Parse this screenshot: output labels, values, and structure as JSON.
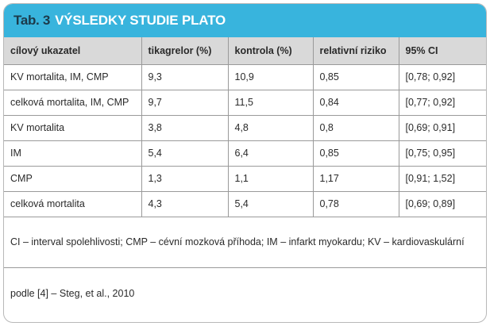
{
  "table": {
    "label": "Tab. 3",
    "title": "VÝSLEDKY STUDIE PLATO",
    "headers": [
      "cílový ukazatel",
      "tikagrelor (%)",
      "kontrola (%)",
      "relativní riziko",
      "95% CI"
    ],
    "rows": [
      [
        "KV mortalita, IM, CMP",
        "9,3",
        "10,9",
        "0,85",
        "[0,78; 0,92]"
      ],
      [
        "celková mortalita, IM, CMP",
        "9,7",
        "11,5",
        "0,84",
        "[0,77; 0,92]"
      ],
      [
        "KV mortalita",
        "3,8",
        "4,8",
        "0,8",
        "[0,69; 0,91]"
      ],
      [
        "IM",
        "5,4",
        "6,4",
        "0,85",
        "[0,75; 0,95]"
      ],
      [
        "CMP",
        "1,3",
        "1,1",
        "1,17",
        "[0,91; 1,52]"
      ],
      [
        "celková mortalita",
        "4,3",
        "5,4",
        "0,78",
        "[0,69; 0,89]"
      ]
    ],
    "footnote": "CI – interval spolehlivosti; CMP – cévní mozková příhoda; IM – infarkt myokardu; KV – kardiovaskulární",
    "source": "podle [4] – Steg, et al., 2010"
  },
  "colors": {
    "title_bar": "#38b4dd",
    "header_bg": "#d9d9d9"
  }
}
